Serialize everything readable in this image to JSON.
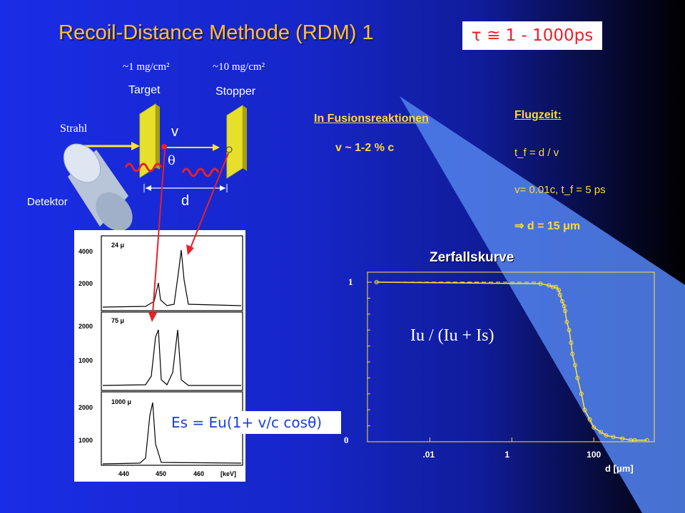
{
  "title": "Recoil-Distance Methode (RDM)  1",
  "tau_box": "τ ≅ 1 - 1000ps",
  "target": {
    "density": "~1 mg/cm²",
    "label": "Target"
  },
  "stopper": {
    "density": "~10 mg/cm²",
    "label": "Stopper"
  },
  "beam_label": "Strahl",
  "detector_label": "Detektor",
  "v_label": "v",
  "theta_label": "θ",
  "d_label": "d",
  "fusion": {
    "heading": "In Fusionsreaktionen",
    "velocity": "v ~ 1-2 % c"
  },
  "flight": {
    "heading": "Flugzeit:",
    "line1": "t_f = d / v",
    "line2": "v= 0.01c, t_f = 5 ps",
    "line3": "⇒ d = 15 μm"
  },
  "spectrum": {
    "panels": [
      {
        "label": "24 μ",
        "yticks": [
          "4000",
          "2000"
        ]
      },
      {
        "label": "75 μ",
        "yticks": [
          "2000",
          "1000"
        ]
      },
      {
        "label": "1000 μ",
        "yticks": [
          "2000",
          "1000"
        ]
      }
    ],
    "xticks": [
      "440",
      "450",
      "460"
    ],
    "xunit": "[keV]"
  },
  "formula": "Es = Eu(1+ v/c cosθ)",
  "decay": {
    "title": "Zerfallskurve",
    "ratio_label": "Iu / (Iu + Is)",
    "xlabel": "d [μm]",
    "yticks": [
      "1",
      "0"
    ],
    "xticks": [
      ".01",
      "1",
      "100"
    ]
  },
  "chart_data": {
    "type": "scatter",
    "title": "Zerfallskurve",
    "xlabel": "d [μm]",
    "ylabel": "Iu / (Iu + Is)",
    "xscale": "log",
    "xlim": [
      0.0003,
      3000
    ],
    "ylim": [
      0,
      1
    ],
    "x": [
      0.0005,
      5,
      8,
      10,
      12,
      14,
      15,
      17,
      19,
      20,
      22,
      25,
      28,
      30,
      35,
      40,
      50,
      60,
      80,
      100,
      150,
      200,
      300,
      500,
      800,
      1000,
      2000
    ],
    "y": [
      1.0,
      0.99,
      0.98,
      0.97,
      0.97,
      0.95,
      0.92,
      0.88,
      0.85,
      0.82,
      0.75,
      0.7,
      0.62,
      0.55,
      0.48,
      0.4,
      0.3,
      0.2,
      0.14,
      0.09,
      0.06,
      0.04,
      0.03,
      0.02,
      0.01,
      0.01,
      0.01
    ],
    "grid": false
  }
}
